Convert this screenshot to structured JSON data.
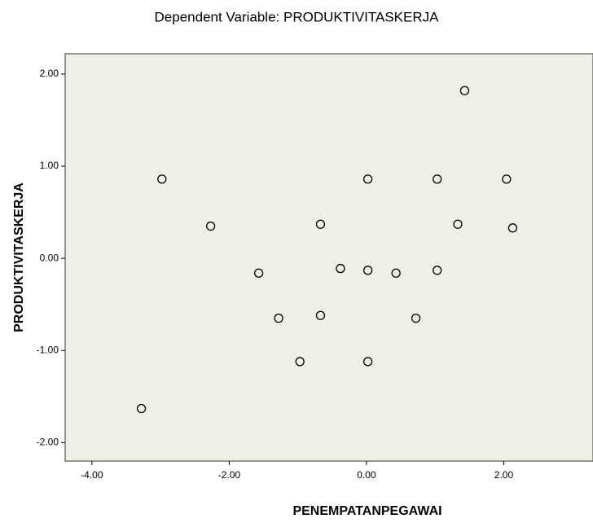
{
  "chart_data": {
    "type": "scatter",
    "title": "Dependent Variable: PRODUKTIVITASKERJA",
    "x_label": "PENEMPATANPEGAWAI",
    "y_label": "PRODUKTIVITASKERJA",
    "x": [
      -2.98,
      -2.27,
      -1.57,
      -1.28,
      -0.97,
      -0.67,
      -0.67,
      -0.38,
      0.02,
      0.02,
      0.02,
      0.43,
      0.72,
      1.03,
      1.03,
      1.33,
      1.43,
      2.04,
      2.13,
      -3.28
    ],
    "values": [
      0.86,
      0.35,
      -0.16,
      -0.65,
      -1.12,
      0.37,
      -0.62,
      -0.11,
      0.86,
      -0.13,
      -1.12,
      -0.16,
      -0.65,
      0.86,
      -0.13,
      0.37,
      1.82,
      0.86,
      0.33,
      -1.63
    ],
    "color": "#000000",
    "background": "#f0efe6",
    "xlim": [
      -4.39,
      3.3
    ],
    "ylim": [
      -2.2,
      2.22
    ],
    "xticks": [
      {
        "value": -4,
        "label": "-4.00"
      },
      {
        "value": -2,
        "label": "-2.00"
      },
      {
        "value": 0,
        "label": "0.00"
      },
      {
        "value": 2,
        "label": "2.00"
      }
    ],
    "yticks": [
      {
        "value": -2,
        "label": "-2.00"
      },
      {
        "value": -1,
        "label": "-1.00"
      },
      {
        "value": 0,
        "label": "0.00"
      },
      {
        "value": 1,
        "label": "1.00"
      },
      {
        "value": 2,
        "label": "2.00"
      }
    ]
  }
}
